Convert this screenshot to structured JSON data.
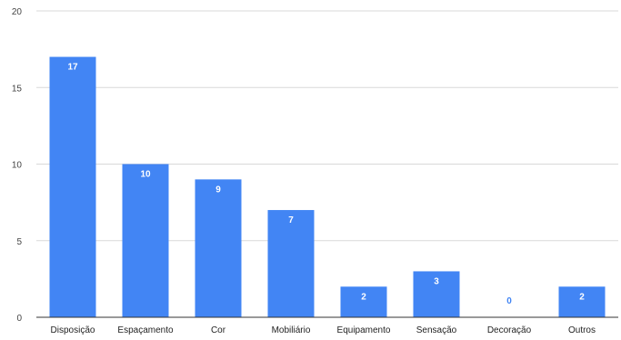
{
  "chart_data": {
    "type": "bar",
    "categories": [
      "Disposição",
      "Espaçamento",
      "Cor",
      "Mobiliário",
      "Equipamento",
      "Sensação",
      "Decoração",
      "Outros"
    ],
    "values": [
      17,
      10,
      9,
      7,
      2,
      3,
      0,
      2
    ],
    "ylim": [
      0,
      20
    ],
    "yticks": [
      0,
      5,
      10,
      15,
      20
    ],
    "grid": true,
    "bar_color": "#4285f4",
    "label_color_inside": "#ffffff",
    "label_color_outside": "#4285f4"
  }
}
